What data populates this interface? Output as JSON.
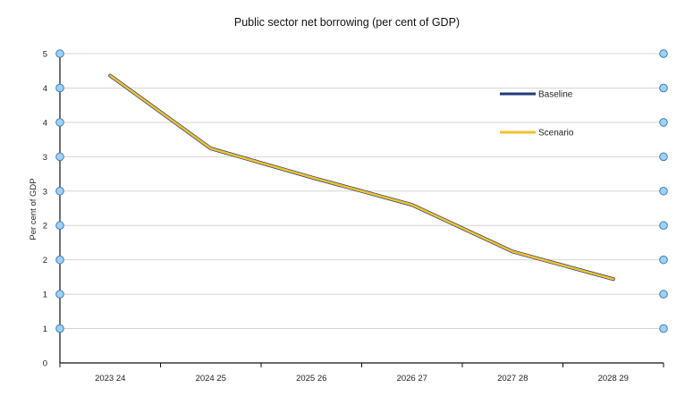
{
  "chart_data": {
    "type": "line",
    "title": "Public sector net borrowing (per cent of GDP)",
    "xlabel": "",
    "ylabel": "Per cent of GDP",
    "categories": [
      "2023 24",
      "2024 25",
      "2025 26",
      "2026 27",
      "2027 28",
      "2028 29"
    ],
    "ylim": [
      0,
      4.5
    ],
    "y_ticks": [
      0,
      0.5,
      1,
      1.5,
      2,
      2.5,
      3,
      3.5,
      4,
      4.5
    ],
    "y_tick_labels": [
      "0",
      "1",
      "1",
      "2",
      "2",
      "3",
      "3",
      "4",
      "4",
      "5"
    ],
    "series": [
      {
        "name": "Baseline",
        "values": [
          4.18,
          3.12,
          2.7,
          2.3,
          1.62,
          1.22
        ],
        "color": "#1f3a7a"
      },
      {
        "name": "Scenario",
        "values": [
          4.18,
          3.12,
          2.7,
          2.3,
          1.62,
          1.22
        ],
        "color": "#f2c12e"
      }
    ],
    "grid": true,
    "legend_position": "top-right",
    "axis_marker_color": "#9fd0f5"
  }
}
